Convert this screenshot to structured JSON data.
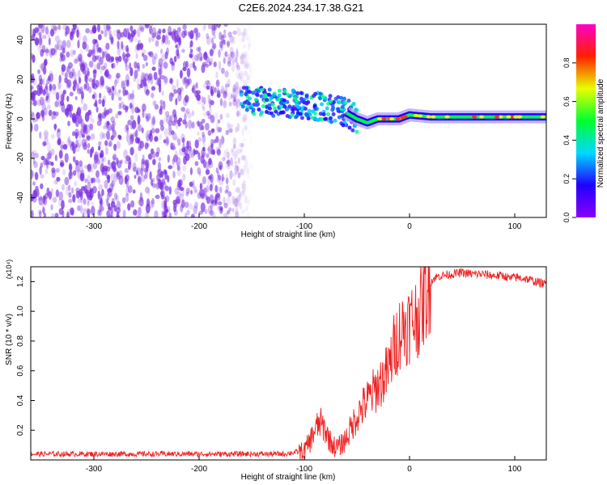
{
  "title": "C2E6.2024.234.17.38.G21",
  "colors": {
    "snr_line": "#ee2222",
    "spectrogram_scatter": "#7a2fe0",
    "colorbar_stops": [
      "#8a00ff",
      "#2000ff",
      "#00d8ff",
      "#00ff30",
      "#e8ff00",
      "#ff2000",
      "#ff00c8"
    ]
  },
  "chart_data": [
    {
      "type": "heatmap",
      "xlabel": "Height of straight line (km)",
      "ylabel": "Frequency (Hz)",
      "xlim": [
        -360,
        130
      ],
      "ylim": [
        -50,
        48
      ],
      "x_ticks": [
        -300,
        -200,
        -100,
        0,
        100
      ],
      "y_ticks": [
        -40,
        -20,
        0,
        20,
        40
      ],
      "colorbar": {
        "label": "Normalized spectral amplitude",
        "range": [
          0,
          1
        ],
        "ticks": [
          "0.0",
          "0.2",
          "0.4",
          "0.6",
          "0.8"
        ]
      },
      "ridge": {
        "x": [
          -160,
          -140,
          -120,
          -100,
          -80,
          -60,
          -50,
          -40,
          -30,
          -20,
          -10,
          0,
          20,
          40,
          60,
          80,
          100,
          130
        ],
        "y": [
          9,
          9,
          8,
          7,
          6,
          3,
          0,
          -2,
          0,
          0,
          0,
          2,
          1,
          1,
          1,
          1,
          1,
          1
        ]
      }
    },
    {
      "type": "line",
      "xlabel": "Height of straight line (km)",
      "ylabel": "SNR (10 * v/v)",
      "y_multiplier": "(x10⁴)",
      "xlim": [
        -360,
        130
      ],
      "ylim": [
        0.0,
        1.3
      ],
      "x_ticks": [
        -300,
        -200,
        -100,
        0,
        100
      ],
      "y_ticks": [
        "0.2",
        "0.4",
        "0.6",
        "0.8",
        "1.0",
        "1.2"
      ],
      "series": [
        {
          "x": [
            -360,
            -300,
            -200,
            -120,
            -100,
            -95,
            -90,
            -85,
            -80,
            -75,
            -70,
            -65,
            -60,
            -55,
            -50,
            -45,
            -40,
            -35,
            -30,
            -25,
            -20,
            -15,
            -10,
            -5,
            0,
            5,
            10,
            15,
            20,
            25,
            30,
            40,
            50,
            60,
            70,
            80,
            90,
            95,
            100,
            110,
            120,
            130
          ],
          "y": [
            0.04,
            0.04,
            0.04,
            0.04,
            0.06,
            0.12,
            0.2,
            0.25,
            0.2,
            0.12,
            0.08,
            0.1,
            0.15,
            0.22,
            0.3,
            0.35,
            0.4,
            0.45,
            0.5,
            0.55,
            0.6,
            0.75,
            0.85,
            0.9,
            0.92,
            0.95,
            1.0,
            1.1,
            1.2,
            1.23,
            1.24,
            1.25,
            1.26,
            1.25,
            1.25,
            1.24,
            1.24,
            1.22,
            1.23,
            1.22,
            1.2,
            1.18
          ]
        }
      ]
    }
  ]
}
